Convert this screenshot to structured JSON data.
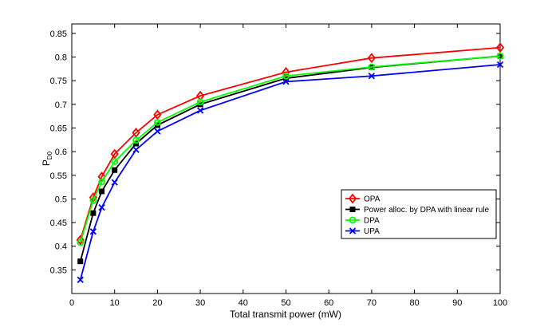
{
  "chart_data": {
    "type": "line",
    "xlabel": "Total transmit power (mW)",
    "ylabel": "P",
    "ylabel_sub": "D0",
    "xlim": [
      0,
      100
    ],
    "ylim": [
      0.3,
      0.87
    ],
    "xticks": [
      0,
      10,
      20,
      30,
      40,
      50,
      60,
      70,
      80,
      90,
      100
    ],
    "yticks": [
      0.35,
      0.4,
      0.45,
      0.5,
      0.55,
      0.6,
      0.65,
      0.7,
      0.75,
      0.8,
      0.85
    ],
    "grid": false,
    "legend_position": "lower-right",
    "x": [
      2,
      5,
      7,
      10,
      15,
      20,
      30,
      50,
      70,
      100
    ],
    "series": [
      {
        "name": "OPA",
        "color": "#ff0000",
        "marker": "diamond",
        "values": [
          0.413,
          0.503,
          0.547,
          0.595,
          0.64,
          0.678,
          0.718,
          0.768,
          0.798,
          0.82
        ]
      },
      {
        "name": "Power alloc. by DPA with linear rule",
        "color": "#000000",
        "marker": "square",
        "values": [
          0.368,
          0.47,
          0.516,
          0.561,
          0.617,
          0.656,
          0.7,
          0.755,
          0.778,
          0.802
        ]
      },
      {
        "name": "DPA",
        "color": "#00ff00",
        "marker": "circle",
        "values": [
          0.408,
          0.497,
          0.536,
          0.579,
          0.624,
          0.662,
          0.705,
          0.76,
          0.779,
          0.802
        ]
      },
      {
        "name": "UPA",
        "color": "#0000ff",
        "marker": "x",
        "values": [
          0.329,
          0.431,
          0.482,
          0.535,
          0.604,
          0.643,
          0.687,
          0.748,
          0.76,
          0.784
        ]
      }
    ]
  }
}
